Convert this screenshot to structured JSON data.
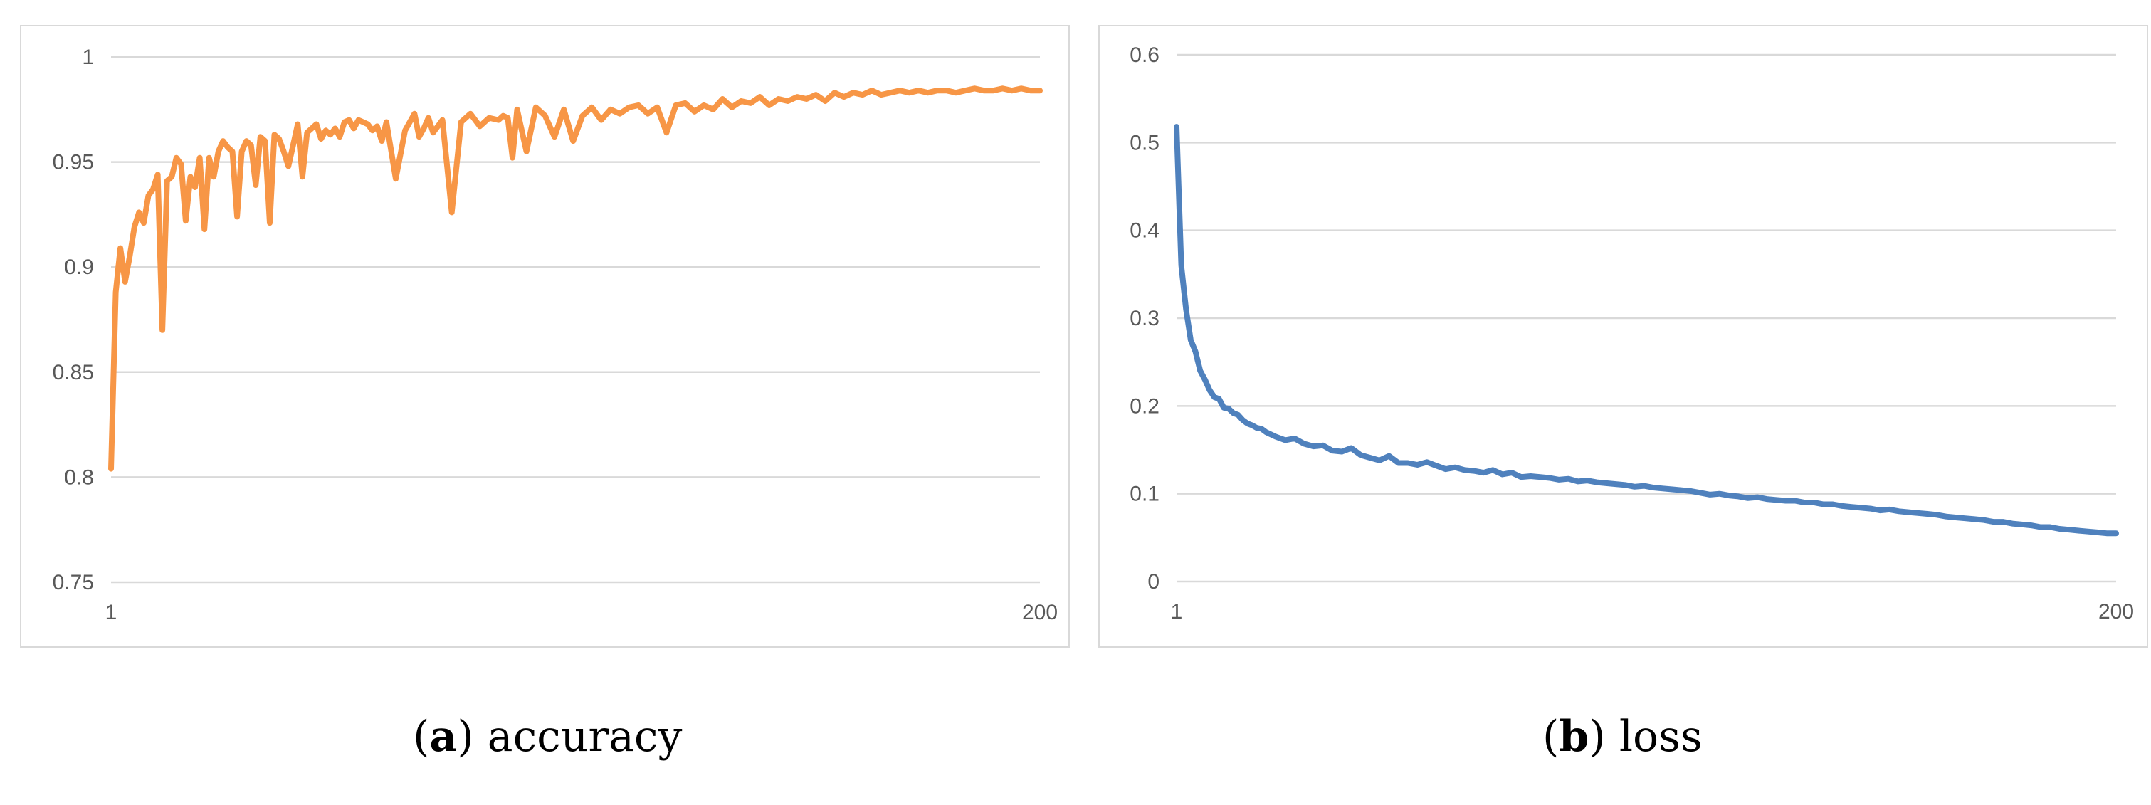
{
  "colors": {
    "accuracy_line": "#f79646",
    "loss_line": "#4f81bd",
    "grid": "#d9d9d9",
    "tick_text": "#595959",
    "panel_border": "#d9d9d9"
  },
  "captions": [
    {
      "open": "(",
      "letter": "a",
      "close": ")",
      "text": " accuracy"
    },
    {
      "open": "(",
      "letter": "b",
      "close": ")",
      "text": " loss"
    }
  ],
  "chart_data": [
    {
      "type": "line",
      "title": "",
      "xlabel": "",
      "ylabel": "",
      "xlim": [
        1,
        200
      ],
      "ylim": [
        0.75,
        1
      ],
      "x_tick_labels": [
        "1",
        "200"
      ],
      "y_tick_values": [
        0.75,
        0.8,
        0.85,
        0.9,
        0.95,
        1
      ],
      "y_tick_labels": [
        "0.75",
        "0.8",
        "0.85",
        "0.9",
        "0.95",
        "1"
      ],
      "grid": true,
      "legend": "none",
      "series": [
        {
          "color": "#f79646",
          "x": [
            1,
            2,
            3,
            4,
            5,
            6,
            7,
            8,
            9,
            10,
            11,
            12,
            13,
            14,
            15,
            16,
            17,
            18,
            19,
            20,
            21,
            22,
            23,
            24,
            25,
            26,
            27,
            28,
            29,
            30,
            31,
            32,
            33,
            34,
            35,
            36,
            37,
            38,
            39,
            40,
            41,
            42,
            43,
            44,
            45,
            46,
            47,
            48,
            49,
            50,
            51,
            52,
            53,
            54,
            55,
            56,
            57,
            58,
            59,
            60,
            62,
            64,
            66,
            67,
            68,
            69,
            70,
            72,
            74,
            76,
            78,
            80,
            82,
            84,
            85,
            86,
            87,
            88,
            90,
            92,
            94,
            96,
            98,
            100,
            102,
            104,
            106,
            108,
            110,
            112,
            114,
            116,
            118,
            120,
            122,
            124,
            126,
            128,
            130,
            132,
            134,
            136,
            138,
            140,
            142,
            144,
            146,
            148,
            150,
            152,
            154,
            156,
            158,
            160,
            162,
            164,
            166,
            168,
            170,
            172,
            174,
            176,
            178,
            180,
            182,
            184,
            186,
            188,
            190,
            192,
            194,
            196,
            198,
            200
          ],
          "values": [
            0.804,
            0.888,
            0.909,
            0.893,
            0.905,
            0.919,
            0.926,
            0.921,
            0.934,
            0.937,
            0.944,
            0.87,
            0.941,
            0.943,
            0.952,
            0.949,
            0.922,
            0.943,
            0.938,
            0.952,
            0.918,
            0.952,
            0.943,
            0.955,
            0.96,
            0.957,
            0.955,
            0.924,
            0.955,
            0.96,
            0.958,
            0.939,
            0.962,
            0.96,
            0.921,
            0.963,
            0.961,
            0.955,
            0.948,
            0.958,
            0.968,
            0.943,
            0.964,
            0.966,
            0.968,
            0.961,
            0.965,
            0.963,
            0.966,
            0.962,
            0.969,
            0.97,
            0.966,
            0.97,
            0.969,
            0.968,
            0.965,
            0.967,
            0.96,
            0.969,
            0.942,
            0.965,
            0.973,
            0.962,
            0.966,
            0.971,
            0.964,
            0.97,
            0.926,
            0.969,
            0.973,
            0.967,
            0.971,
            0.97,
            0.972,
            0.971,
            0.952,
            0.975,
            0.955,
            0.976,
            0.972,
            0.962,
            0.975,
            0.96,
            0.972,
            0.976,
            0.97,
            0.975,
            0.973,
            0.976,
            0.977,
            0.973,
            0.976,
            0.964,
            0.977,
            0.978,
            0.974,
            0.977,
            0.975,
            0.98,
            0.976,
            0.979,
            0.978,
            0.981,
            0.977,
            0.98,
            0.979,
            0.981,
            0.98,
            0.982,
            0.979,
            0.983,
            0.981,
            0.983,
            0.982,
            0.984,
            0.982,
            0.983,
            0.984,
            0.983,
            0.984,
            0.983,
            0.984,
            0.984,
            0.983,
            0.984,
            0.985,
            0.984,
            0.984,
            0.985,
            0.984,
            0.985,
            0.984,
            0.984
          ]
        }
      ]
    },
    {
      "type": "line",
      "title": "",
      "xlabel": "",
      "ylabel": "",
      "xlim": [
        1,
        200
      ],
      "ylim": [
        0,
        0.6
      ],
      "x_tick_labels": [
        "1",
        "200"
      ],
      "y_tick_values": [
        0,
        0.1,
        0.2,
        0.3,
        0.4,
        0.5,
        0.6
      ],
      "y_tick_labels": [
        "0",
        "0.1",
        "0.2",
        "0.3",
        "0.4",
        "0.5",
        "0.6"
      ],
      "grid": true,
      "legend": "none",
      "series": [
        {
          "color": "#4f81bd",
          "x": [
            1,
            2,
            3,
            4,
            5,
            6,
            7,
            8,
            9,
            10,
            11,
            12,
            13,
            14,
            15,
            16,
            17,
            18,
            19,
            20,
            22,
            24,
            26,
            28,
            30,
            32,
            34,
            36,
            38,
            40,
            42,
            44,
            46,
            48,
            50,
            52,
            54,
            56,
            58,
            60,
            62,
            64,
            66,
            68,
            70,
            72,
            74,
            76,
            78,
            80,
            82,
            84,
            86,
            88,
            90,
            92,
            94,
            96,
            98,
            100,
            102,
            104,
            106,
            108,
            110,
            112,
            114,
            116,
            118,
            120,
            122,
            124,
            126,
            128,
            130,
            132,
            134,
            136,
            138,
            140,
            142,
            144,
            146,
            148,
            150,
            152,
            154,
            156,
            158,
            160,
            162,
            164,
            166,
            168,
            170,
            172,
            174,
            176,
            178,
            180,
            182,
            184,
            186,
            188,
            190,
            192,
            194,
            196,
            198,
            200
          ],
          "values": [
            0.518,
            0.36,
            0.31,
            0.275,
            0.262,
            0.24,
            0.23,
            0.218,
            0.21,
            0.208,
            0.198,
            0.197,
            0.192,
            0.19,
            0.184,
            0.18,
            0.178,
            0.175,
            0.174,
            0.17,
            0.165,
            0.161,
            0.163,
            0.157,
            0.154,
            0.155,
            0.149,
            0.148,
            0.152,
            0.144,
            0.141,
            0.138,
            0.143,
            0.135,
            0.135,
            0.133,
            0.136,
            0.132,
            0.128,
            0.13,
            0.127,
            0.126,
            0.124,
            0.127,
            0.122,
            0.124,
            0.119,
            0.12,
            0.119,
            0.118,
            0.116,
            0.117,
            0.114,
            0.115,
            0.113,
            0.112,
            0.111,
            0.11,
            0.108,
            0.109,
            0.107,
            0.106,
            0.105,
            0.104,
            0.103,
            0.101,
            0.099,
            0.1,
            0.098,
            0.097,
            0.095,
            0.096,
            0.094,
            0.093,
            0.092,
            0.092,
            0.09,
            0.09,
            0.088,
            0.088,
            0.086,
            0.085,
            0.084,
            0.083,
            0.081,
            0.082,
            0.08,
            0.079,
            0.078,
            0.077,
            0.076,
            0.074,
            0.073,
            0.072,
            0.071,
            0.07,
            0.068,
            0.068,
            0.066,
            0.065,
            0.064,
            0.062,
            0.062,
            0.06,
            0.059,
            0.058,
            0.057,
            0.056,
            0.055,
            0.055
          ]
        }
      ]
    }
  ]
}
